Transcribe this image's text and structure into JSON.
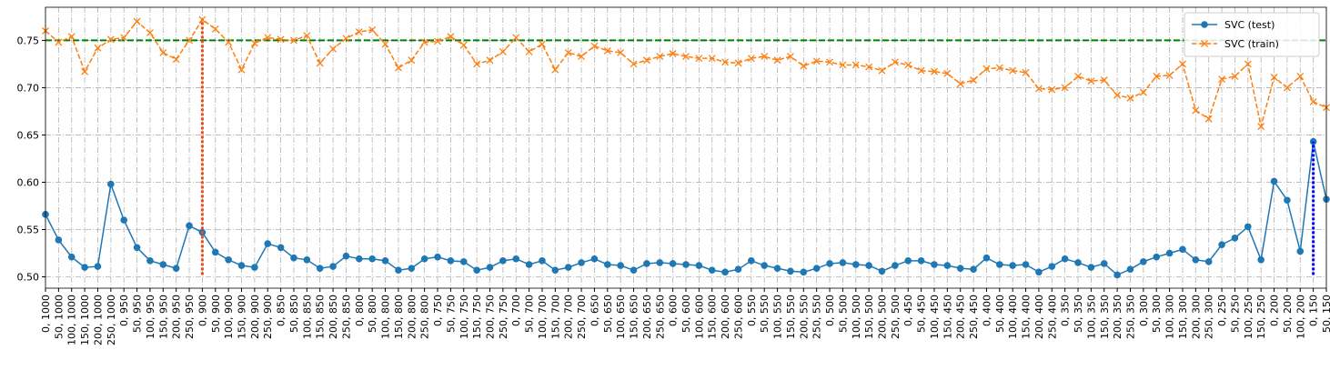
{
  "chart_data": {
    "type": "line",
    "categories": [
      "0, 1000",
      "50, 1000",
      "100, 1000",
      "150, 1000",
      "200, 1000",
      "250, 1000",
      "0, 950",
      "50, 950",
      "100, 950",
      "150, 950",
      "200, 950",
      "250, 950",
      "0, 900",
      "50, 900",
      "100, 900",
      "150, 900",
      "200, 900",
      "250, 900",
      "0, 850",
      "50, 850",
      "100, 850",
      "150, 850",
      "200, 850",
      "250, 850",
      "0, 800",
      "50, 800",
      "100, 800",
      "150, 800",
      "200, 800",
      "250, 800",
      "0, 750",
      "50, 750",
      "100, 750",
      "150, 750",
      "200, 750",
      "250, 750",
      "0, 700",
      "50, 700",
      "100, 700",
      "150, 700",
      "200, 700",
      "250, 700",
      "0, 650",
      "50, 650",
      "100, 650",
      "150, 650",
      "200, 650",
      "250, 650",
      "0, 600",
      "50, 600",
      "100, 600",
      "150, 600",
      "200, 600",
      "250, 600",
      "0, 550",
      "50, 550",
      "100, 550",
      "150, 550",
      "200, 550",
      "250, 550",
      "0, 500",
      "50, 500",
      "100, 500",
      "150, 500",
      "200, 500",
      "250, 500",
      "0, 450",
      "50, 450",
      "100, 450",
      "150, 450",
      "200, 450",
      "250, 450",
      "0, 400",
      "50, 400",
      "100, 400",
      "150, 400",
      "200, 400",
      "250, 400",
      "0, 350",
      "50, 350",
      "100, 350",
      "150, 350",
      "200, 350",
      "250, 350",
      "0, 300",
      "50, 300",
      "100, 300",
      "150, 300",
      "200, 300",
      "250, 300",
      "0, 250",
      "50, 250",
      "100, 250",
      "150, 250",
      "0, 200",
      "50, 200",
      "100, 200",
      "0, 150",
      "50, 150"
    ],
    "series": [
      {
        "name": "SVC (test)",
        "color": "#1f77b4",
        "marker": "circle",
        "dashed": false,
        "values": [
          0.566,
          0.539,
          0.521,
          0.51,
          0.511,
          0.598,
          0.56,
          0.531,
          0.517,
          0.513,
          0.509,
          0.554,
          0.547,
          0.526,
          0.518,
          0.512,
          0.51,
          0.535,
          0.531,
          0.52,
          0.518,
          0.509,
          0.511,
          0.522,
          0.519,
          0.519,
          0.517,
          0.507,
          0.509,
          0.519,
          0.521,
          0.517,
          0.516,
          0.507,
          0.51,
          0.517,
          0.519,
          0.513,
          0.517,
          0.507,
          0.51,
          0.515,
          0.519,
          0.513,
          0.512,
          0.507,
          0.514,
          0.515,
          0.514,
          0.513,
          0.512,
          0.507,
          0.505,
          0.508,
          0.517,
          0.512,
          0.509,
          0.506,
          0.505,
          0.509,
          0.514,
          0.515,
          0.513,
          0.512,
          0.506,
          0.512,
          0.517,
          0.517,
          0.513,
          0.512,
          0.509,
          0.508,
          0.52,
          0.513,
          0.512,
          0.513,
          0.505,
          0.511,
          0.519,
          0.515,
          0.51,
          0.514,
          0.502,
          0.508,
          0.516,
          0.521,
          0.525,
          0.529,
          0.518,
          0.516,
          0.534,
          0.541,
          0.553,
          0.518,
          0.601,
          0.581,
          0.527,
          0.643,
          0.582
        ]
      },
      {
        "name": "SVC (train)",
        "color": "#ff7f0e",
        "marker": "x",
        "dashed": true,
        "values": [
          0.76,
          0.748,
          0.754,
          0.717,
          0.742,
          0.751,
          0.753,
          0.77,
          0.758,
          0.737,
          0.73,
          0.75,
          0.772,
          0.762,
          0.748,
          0.719,
          0.747,
          0.753,
          0.751,
          0.75,
          0.755,
          0.726,
          0.741,
          0.752,
          0.759,
          0.761,
          0.746,
          0.721,
          0.729,
          0.748,
          0.749,
          0.754,
          0.745,
          0.725,
          0.729,
          0.738,
          0.753,
          0.738,
          0.746,
          0.719,
          0.737,
          0.733,
          0.744,
          0.739,
          0.737,
          0.725,
          0.729,
          0.733,
          0.736,
          0.733,
          0.731,
          0.731,
          0.727,
          0.726,
          0.731,
          0.733,
          0.729,
          0.733,
          0.723,
          0.728,
          0.727,
          0.724,
          0.724,
          0.722,
          0.718,
          0.727,
          0.724,
          0.718,
          0.717,
          0.715,
          0.704,
          0.708,
          0.72,
          0.721,
          0.718,
          0.716,
          0.699,
          0.698,
          0.7,
          0.712,
          0.707,
          0.708,
          0.692,
          0.689,
          0.695,
          0.712,
          0.713,
          0.725,
          0.676,
          0.667,
          0.709,
          0.712,
          0.725,
          0.659,
          0.711,
          0.7,
          0.712,
          0.685,
          0.679
        ]
      }
    ],
    "hline": {
      "y": 0.75,
      "color": "#008000"
    },
    "vlines": [
      {
        "category": "0, 900",
        "ymin": 0.502,
        "ymax": 0.772,
        "color": "#e8501a"
      },
      {
        "category": "0, 150",
        "ymin": 0.502,
        "ymax": 0.643,
        "color": "#0000ff"
      }
    ],
    "ylim": [
      0.488,
      0.785
    ],
    "yticks": [
      {
        "value": 0.5,
        "label": "0.50"
      },
      0.55,
      {
        "value": 0.6,
        "label": "0.60"
      },
      0.65,
      {
        "value": 0.7,
        "label": "0.70"
      },
      0.75
    ],
    "grid": true,
    "legend": "upper right"
  }
}
